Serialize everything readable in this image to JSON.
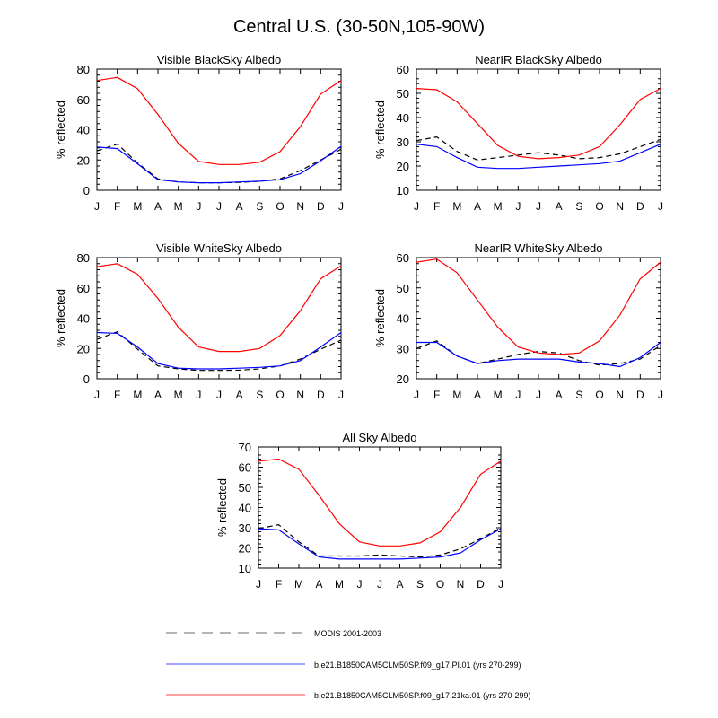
{
  "title": "Central U.S. (30-50N,105-90W)",
  "months": [
    "J",
    "F",
    "M",
    "A",
    "M",
    "J",
    "J",
    "A",
    "S",
    "O",
    "N",
    "D",
    "J"
  ],
  "series_styles": [
    {
      "name": "MODIS 2001-2003",
      "color": "#000000",
      "dash": "6,4",
      "legend_color": "#888888"
    },
    {
      "name": "b.e21.B1850CAM5CLM50SP.f09_g17.PI.01 (yrs 270-299)",
      "color": "#0000ff",
      "dash": "",
      "legend_color": "#6b6bff"
    },
    {
      "name": "b.e21.B1850CAM5CLM50SP.f09_g17.21ka.01 (yrs 270-299)",
      "color": "#ff0000",
      "dash": "",
      "legend_color": "#ff6b6b"
    }
  ],
  "chart_data": [
    {
      "type": "line",
      "title": "Visible BlackSky Albedo",
      "xlabel": "",
      "ylabel": "% reflected",
      "ylim": [
        0,
        80
      ],
      "yticks": [
        0,
        20,
        40,
        60,
        80
      ],
      "categories": [
        "J",
        "F",
        "M",
        "A",
        "M",
        "J",
        "J",
        "A",
        "S",
        "O",
        "N",
        "D",
        "J"
      ],
      "series": [
        {
          "name": "MODIS 2001-2003",
          "values": [
            26,
            30.5,
            18,
            7.5,
            5.5,
            5,
            5,
            5.2,
            6,
            7.5,
            13,
            20,
            27
          ]
        },
        {
          "name": "b.e21.B1850CAM5CLM50SP.f09_g17.PI.01 (yrs 270-299)",
          "values": [
            28.5,
            27.5,
            17.5,
            7,
            5.5,
            5,
            5,
            5.5,
            6,
            7,
            11,
            19.5,
            29
          ]
        },
        {
          "name": "b.e21.B1850CAM5CLM50SP.f09_g17.21ka.01 (yrs 270-299)",
          "values": [
            72.5,
            74.5,
            67,
            50,
            31,
            19,
            17,
            17,
            18.5,
            25.5,
            42,
            63.5,
            72.5
          ]
        }
      ]
    },
    {
      "type": "line",
      "title": "NearIR BlackSky Albedo",
      "xlabel": "",
      "ylabel": "% reflected",
      "ylim": [
        10,
        60
      ],
      "yticks": [
        10,
        20,
        30,
        40,
        50,
        60
      ],
      "categories": [
        "J",
        "F",
        "M",
        "A",
        "M",
        "J",
        "J",
        "A",
        "S",
        "O",
        "N",
        "D",
        "J"
      ],
      "series": [
        {
          "name": "MODIS 2001-2003",
          "values": [
            30.5,
            32,
            26,
            22.5,
            23.5,
            24.5,
            25.5,
            24.5,
            23,
            23.5,
            25,
            28,
            31
          ]
        },
        {
          "name": "b.e21.B1850CAM5CLM50SP.f09_g17.PI.01 (yrs 270-299)",
          "values": [
            29,
            28,
            23.5,
            19.5,
            19,
            19,
            19.5,
            20,
            20.5,
            21,
            22,
            25.5,
            29
          ]
        },
        {
          "name": "b.e21.B1850CAM5CLM50SP.f09_g17.21ka.01 (yrs 270-299)",
          "values": [
            52,
            51.5,
            46.5,
            37.5,
            28.5,
            24,
            23,
            23.5,
            24.5,
            28,
            37,
            47.5,
            52
          ]
        }
      ]
    },
    {
      "type": "line",
      "title": "Visible WhiteSky Albedo",
      "xlabel": "",
      "ylabel": "% reflected",
      "ylim": [
        0,
        80
      ],
      "yticks": [
        0,
        20,
        40,
        60,
        80
      ],
      "categories": [
        "J",
        "F",
        "M",
        "A",
        "M",
        "J",
        "J",
        "A",
        "S",
        "O",
        "N",
        "D",
        "J"
      ],
      "series": [
        {
          "name": "MODIS 2001-2003",
          "values": [
            26,
            31,
            19.5,
            8.5,
            6.5,
            5.5,
            5.5,
            5.7,
            6.5,
            8.5,
            13,
            19.5,
            25.5
          ]
        },
        {
          "name": "b.e21.B1850CAM5CLM50SP.f09_g17.PI.01 (yrs 270-299)",
          "values": [
            30.5,
            30,
            21,
            10,
            7,
            6.5,
            6.5,
            7,
            7.5,
            8.5,
            12,
            21,
            30.5
          ]
        },
        {
          "name": "b.e21.B1850CAM5CLM50SP.f09_g17.21ka.01 (yrs 270-299)",
          "values": [
            74,
            76,
            69,
            53,
            34,
            21,
            18,
            18,
            20,
            28.5,
            45,
            66,
            74.5
          ]
        }
      ]
    },
    {
      "type": "line",
      "title": "NearIR WhiteSky Albedo",
      "xlabel": "",
      "ylabel": "% reflected",
      "ylim": [
        20,
        60
      ],
      "yticks": [
        20,
        30,
        40,
        50,
        60
      ],
      "categories": [
        "J",
        "F",
        "M",
        "A",
        "M",
        "J",
        "J",
        "A",
        "S",
        "O",
        "N",
        "D",
        "J"
      ],
      "series": [
        {
          "name": "MODIS 2001-2003",
          "values": [
            30,
            32.5,
            27.5,
            25,
            26.5,
            28,
            29,
            28.5,
            26,
            24.5,
            25,
            26.5,
            31
          ]
        },
        {
          "name": "b.e21.B1850CAM5CLM50SP.f09_g17.PI.01 (yrs 270-299)",
          "values": [
            32,
            32,
            27.5,
            25,
            26,
            26.5,
            26.5,
            26.5,
            25.5,
            25,
            24,
            27,
            32
          ]
        },
        {
          "name": "b.e21.B1850CAM5CLM50SP.f09_g17.21ka.01 (yrs 270-299)",
          "values": [
            58.5,
            59.5,
            55,
            46,
            37,
            30.5,
            28.5,
            28,
            28.5,
            32.5,
            41,
            53,
            58.5
          ]
        }
      ]
    },
    {
      "type": "line",
      "title": "All Sky Albedo",
      "xlabel": "",
      "ylabel": "% reflected",
      "ylim": [
        10,
        70
      ],
      "yticks": [
        10,
        20,
        30,
        40,
        50,
        60,
        70
      ],
      "categories": [
        "J",
        "F",
        "M",
        "A",
        "M",
        "J",
        "J",
        "A",
        "S",
        "O",
        "N",
        "D",
        "J"
      ],
      "series": [
        {
          "name": "MODIS 2001-2003",
          "values": [
            29.5,
            31.5,
            23,
            16,
            16,
            16,
            16.5,
            16,
            15.5,
            16.5,
            19.5,
            24.5,
            30
          ]
        },
        {
          "name": "b.e21.B1850CAM5CLM50SP.f09_g17.PI.01 (yrs 270-299)",
          "values": [
            29.5,
            29,
            22,
            15.5,
            14.5,
            14.5,
            14.5,
            14.5,
            15,
            15.5,
            17.5,
            24,
            29.5
          ]
        },
        {
          "name": "b.e21.B1850CAM5CLM50SP.f09_g17.21ka.01 (yrs 270-299)",
          "values": [
            63,
            64,
            59,
            46,
            32,
            23,
            21,
            21,
            22.5,
            28,
            40,
            56.5,
            63
          ]
        }
      ]
    }
  ]
}
